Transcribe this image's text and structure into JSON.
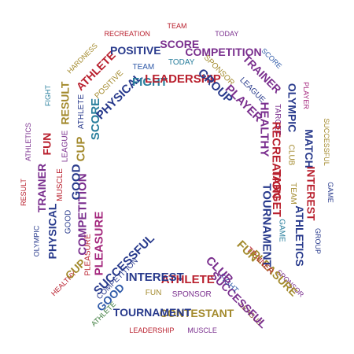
{
  "artwork": {
    "description_free": true,
    "colors": {
      "navy": "#283a8c",
      "purple": "#7a2f8e",
      "red": "#b9202e",
      "olive": "#a38a2d",
      "green": "#3a7a3a",
      "teal": "#2a7f9d",
      "magenta": "#a3267c",
      "blue": "#2f5aa8",
      "brown": "#8a5a2b",
      "lightblue": "#4a8ed0"
    },
    "words": [
      {
        "text": "TEAM",
        "color": "red"
      },
      {
        "text": "TODAY",
        "color": "purple"
      },
      {
        "text": "SCORE",
        "color": "blue"
      },
      {
        "text": "PLAYER",
        "color": "magenta"
      },
      {
        "text": "SUCCESSFUL",
        "color": "olive"
      },
      {
        "text": "GAME",
        "color": "navy"
      },
      {
        "text": "GROUP",
        "color": "navy"
      },
      {
        "text": "SPONSOR",
        "color": "purple"
      },
      {
        "text": "LEAGUE",
        "color": "brown"
      },
      {
        "text": "MUSCLE",
        "color": "purple"
      },
      {
        "text": "LEADERSHIP",
        "color": "red"
      },
      {
        "text": "ATHLETE",
        "color": "green"
      },
      {
        "text": "HEALTHY",
        "color": "red"
      },
      {
        "text": "OLYMPIC",
        "color": "navy"
      },
      {
        "text": "RESULT",
        "color": "red"
      },
      {
        "text": "ATHLETICS",
        "color": "purple"
      },
      {
        "text": "FIGHT",
        "color": "teal"
      },
      {
        "text": "HARDNESS",
        "color": "olive"
      },
      {
        "text": "RECREATION",
        "color": "red"
      },
      {
        "text": "COMPETITION",
        "color": "purple"
      },
      {
        "text": "TRAINER",
        "color": "purple"
      },
      {
        "text": "OLYMPIC",
        "color": "navy"
      },
      {
        "text": "MATCH",
        "color": "navy"
      },
      {
        "text": "INTEREST",
        "color": "red"
      },
      {
        "text": "ATHLETICS",
        "color": "navy"
      },
      {
        "text": "PLEASURE",
        "color": "olive"
      },
      {
        "text": "SUCCESSFUL",
        "color": "purple"
      },
      {
        "text": "CONTESTANT",
        "color": "olive"
      },
      {
        "text": "TOURNAMENT",
        "color": "navy"
      },
      {
        "text": "GOOD",
        "color": "blue"
      },
      {
        "text": "CUP",
        "color": "olive"
      },
      {
        "text": "PHYSICAL",
        "color": "navy"
      },
      {
        "text": "TRAINER",
        "color": "purple"
      },
      {
        "text": "FUN",
        "color": "red"
      },
      {
        "text": "RESULT",
        "color": "olive"
      },
      {
        "text": "ATHLETE",
        "color": "red"
      },
      {
        "text": "POSITIVE",
        "color": "navy"
      },
      {
        "text": "SCORE",
        "color": "purple"
      },
      {
        "text": "LEAGUE",
        "color": "navy"
      },
      {
        "text": "TARGET",
        "color": "purple"
      },
      {
        "text": "CLUB",
        "color": "olive"
      },
      {
        "text": "TEAM",
        "color": "olive"
      },
      {
        "text": "GAME",
        "color": "teal"
      },
      {
        "text": "TRAINER",
        "color": "red"
      },
      {
        "text": "FIGHT",
        "color": "blue"
      },
      {
        "text": "SPONSOR",
        "color": "purple"
      },
      {
        "text": "FUN",
        "color": "olive"
      },
      {
        "text": "COMPETITION",
        "color": "navy"
      },
      {
        "text": "PLEASURE",
        "color": "red"
      },
      {
        "text": "GOOD",
        "color": "navy"
      },
      {
        "text": "MUSCLE",
        "color": "red"
      },
      {
        "text": "LEAGUE",
        "color": "purple"
      },
      {
        "text": "ATHLETE",
        "color": "navy"
      },
      {
        "text": "POSITIVE",
        "color": "olive"
      },
      {
        "text": "TEAM",
        "color": "blue"
      },
      {
        "text": "TODAY",
        "color": "teal"
      },
      {
        "text": "SPONSOR",
        "color": "olive"
      },
      {
        "text": "HEALTHY",
        "color": "purple"
      },
      {
        "text": "RECREATION",
        "color": "red"
      },
      {
        "text": "TARGET",
        "color": "red"
      },
      {
        "text": "TOURNAMENT",
        "color": "navy"
      },
      {
        "text": "FUN",
        "color": "olive"
      },
      {
        "text": "CLUB",
        "color": "purple"
      },
      {
        "text": "ATHLETE",
        "color": "red"
      },
      {
        "text": "INTEREST",
        "color": "navy"
      },
      {
        "text": "SUCCESSFUL",
        "color": "navy"
      },
      {
        "text": "PLEASURE",
        "color": "magenta"
      },
      {
        "text": "COMPETITION",
        "color": "purple"
      },
      {
        "text": "GOOD",
        "color": "navy"
      },
      {
        "text": "CUP",
        "color": "olive"
      },
      {
        "text": "SCORE",
        "color": "teal"
      },
      {
        "text": "PHYSICAL",
        "color": "navy"
      },
      {
        "text": "FIGHT",
        "color": "teal"
      },
      {
        "text": "LEADERSHIP",
        "color": "red"
      },
      {
        "text": "GROUP",
        "color": "navy"
      },
      {
        "text": "PLAYER",
        "color": "purple"
      }
    ]
  }
}
